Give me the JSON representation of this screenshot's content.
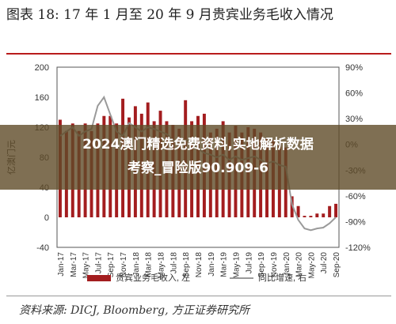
{
  "figure": {
    "title": "图表 18:   17 年 1 月至 20 年 9 月贵宾业务毛收入情况",
    "source": "资料来源: DICJ, Bloomberg, 方正证券研究所"
  },
  "overlay": {
    "line1": "2024澳门精选免费资料,实地解析数据",
    "line2": "考察_冒险版90.909-6"
  },
  "colors": {
    "bar": "#a31d1f",
    "line": "#9a9a9a",
    "axis": "#333333"
  },
  "chart_data": {
    "type": "bar",
    "title": "",
    "ylabel": "亿澳门元",
    "y_left_ticks": [
      "200",
      "160",
      "120",
      "80",
      "40",
      "0",
      "-40"
    ],
    "y_right_ticks": [
      "90%",
      "60%",
      "30%",
      "0%",
      "-30%",
      "-60%",
      "-90%",
      "-120%"
    ],
    "ylim_left": [
      -40,
      200
    ],
    "ylim_right": [
      -120,
      90
    ],
    "x_tick_labels": [
      "Jan-17",
      "Mar-17",
      "May-17",
      "Jul-17",
      "Sep-17",
      "Nov-17",
      "Jan-18",
      "Mar-18",
      "May-18",
      "Jul-18",
      "Sep-18",
      "Nov-18",
      "Jan-19",
      "Mar-19",
      "May-19",
      "Jul-19",
      "Sep-19",
      "Nov-19",
      "Jan-20",
      "Mar-20",
      "May-20",
      "Jul-20",
      "Sep-20"
    ],
    "categories": [
      "Jan-17",
      "Feb-17",
      "Mar-17",
      "Apr-17",
      "May-17",
      "Jun-17",
      "Jul-17",
      "Aug-17",
      "Sep-17",
      "Oct-17",
      "Nov-17",
      "Dec-17",
      "Jan-18",
      "Feb-18",
      "Mar-18",
      "Apr-18",
      "May-18",
      "Jun-18",
      "Jul-18",
      "Aug-18",
      "Sep-18",
      "Oct-18",
      "Nov-18",
      "Dec-18",
      "Jan-19",
      "Feb-19",
      "Mar-19",
      "Apr-19",
      "May-19",
      "Jun-19",
      "Jul-19",
      "Aug-19",
      "Sep-19",
      "Oct-19",
      "Nov-19",
      "Dec-19",
      "Jan-20",
      "Feb-20",
      "Mar-20",
      "Apr-20",
      "May-20",
      "Jun-20",
      "Jul-20",
      "Aug-20",
      "Sep-20"
    ],
    "series": [
      {
        "name": "贵宾业务毛收入, 左",
        "axis": "left",
        "values": [
          130,
          115,
          125,
          115,
          125,
          115,
          125,
          135,
          135,
          125,
          158,
          133,
          148,
          138,
          153,
          128,
          142,
          128,
          123,
          118,
          156,
          128,
          135,
          138,
          113,
          118,
          128,
          113,
          122,
          113,
          120,
          118,
          113,
          105,
          103,
          98,
          93,
          28,
          15,
          2,
          2,
          5,
          5,
          15,
          18
        ]
      },
      {
        "name": "同比增速, 右",
        "axis": "right",
        "values": [
          10,
          15,
          20,
          10,
          15,
          18,
          45,
          55,
          35,
          15,
          10,
          25,
          20,
          15,
          20,
          18,
          15,
          12,
          5,
          0,
          5,
          3,
          -5,
          -10,
          -12,
          -15,
          -12,
          -18,
          -14,
          -18,
          -16,
          -14,
          -18,
          -22,
          -20,
          -24,
          -26,
          -70,
          -88,
          -98,
          -100,
          -98,
          -97,
          -92,
          -85
        ]
      }
    ],
    "legend": [
      "贵宾业务毛收入, 左",
      "同比增速, 右"
    ],
    "legend_position": "bottom",
    "grid": false
  }
}
